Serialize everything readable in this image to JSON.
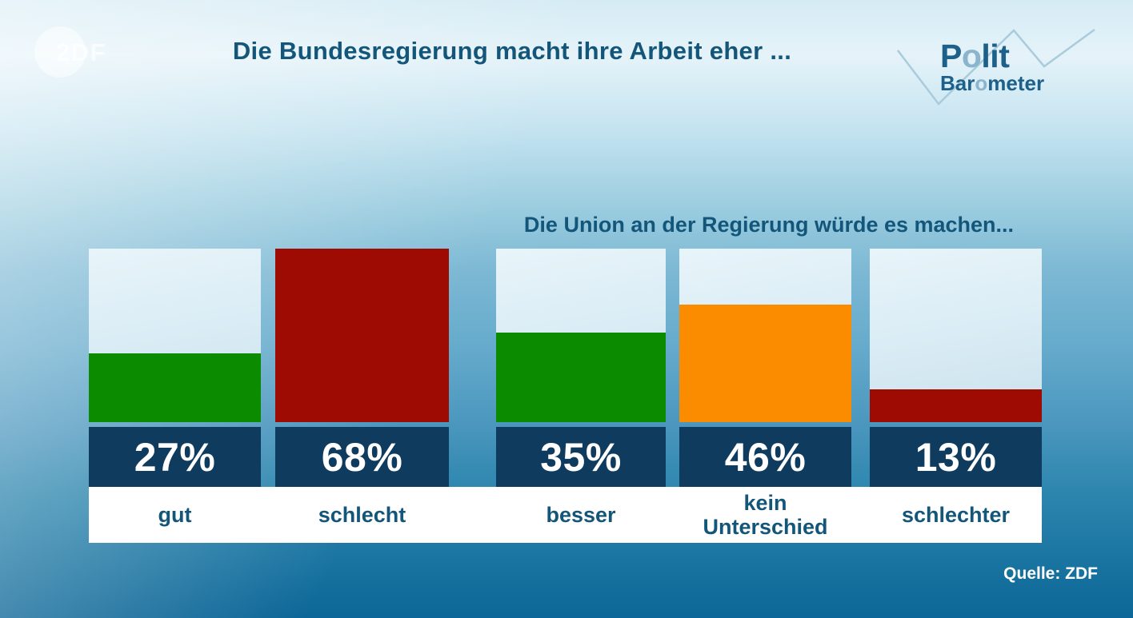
{
  "header": {
    "title": "Die Bundesregierung macht ihre Arbeit eher ...",
    "zdf_logo_text": "2DF",
    "politbarometer": {
      "polit_p": "P",
      "polit_o": "o",
      "polit_rest": "lit",
      "baro_pre": "Bar",
      "baro_o": "o",
      "baro_rest": "meter"
    }
  },
  "subtitle": "Die Union an der Regierung würde es machen...",
  "source": "Quelle: ZDF",
  "chart_data": {
    "type": "bar",
    "title": "Die Bundesregierung macht ihre Arbeit eher ...",
    "group2_title": "Die Union an der Regierung würde es machen...",
    "unit": "%",
    "scale_max": 68,
    "groups": [
      {
        "question": "Die Bundesregierung macht ihre Arbeit eher ...",
        "categories": [
          "gut",
          "schlecht"
        ],
        "values": [
          27,
          68
        ]
      },
      {
        "question": "Die Union an der Regierung würde es machen...",
        "categories": [
          "besser",
          "kein Unterschied",
          "schlechter"
        ],
        "values": [
          35,
          46,
          13
        ]
      }
    ],
    "bars": [
      {
        "label": "gut",
        "value": 27,
        "value_label": "27%",
        "color": "#0b8b00"
      },
      {
        "label": "schlecht",
        "value": 68,
        "value_label": "68%",
        "color": "#9e0b02"
      },
      {
        "label": "besser",
        "value": 35,
        "value_label": "35%",
        "color": "#0b8b00"
      },
      {
        "label": "kein Unterschied",
        "value": 46,
        "value_label": "46%",
        "color": "#fb8c00"
      },
      {
        "label": "schlechter",
        "value": 13,
        "value_label": "13%",
        "color": "#9e0b02"
      }
    ],
    "palette": {
      "positive_green": "#0b8b00",
      "negative_red": "#9e0b02",
      "neutral_orange": "#fb8c00",
      "value_box_navy": "#0e3b5e",
      "empty_track_light": "#d9ecf5",
      "text_teal": "#14567a"
    }
  }
}
